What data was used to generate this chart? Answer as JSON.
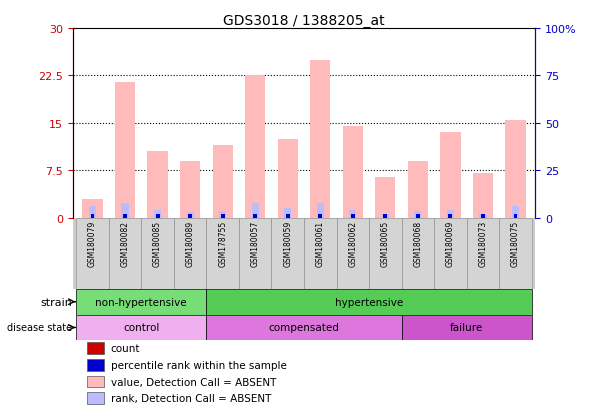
{
  "title": "GDS3018 / 1388205_at",
  "samples": [
    "GSM180079",
    "GSM180082",
    "GSM180085",
    "GSM180089",
    "GSM178755",
    "GSM180057",
    "GSM180059",
    "GSM180061",
    "GSM180062",
    "GSM180065",
    "GSM180068",
    "GSM180069",
    "GSM180073",
    "GSM180075"
  ],
  "value_absent": [
    3.0,
    21.5,
    10.5,
    9.0,
    11.5,
    22.5,
    12.5,
    25.0,
    14.5,
    6.5,
    9.0,
    13.5,
    7.0,
    15.5
  ],
  "rank_absent_pct": [
    6.0,
    8.0,
    4.0,
    3.0,
    3.5,
    8.0,
    5.0,
    8.0,
    4.0,
    2.0,
    3.5,
    4.0,
    2.0,
    6.0
  ],
  "ylim_left": [
    0,
    30
  ],
  "ylim_right": [
    0,
    100
  ],
  "yticks_left": [
    0,
    7.5,
    15,
    22.5,
    30
  ],
  "ytick_labels_left": [
    "0",
    "7.5",
    "15",
    "22.5",
    "30"
  ],
  "yticks_right": [
    0,
    25,
    50,
    75,
    100
  ],
  "ytick_labels_right": [
    "0",
    "25",
    "50",
    "75",
    "100%"
  ],
  "strain_groups": [
    {
      "label": "non-hypertensive",
      "start": 0,
      "end": 4,
      "color": "#77dd77"
    },
    {
      "label": "hypertensive",
      "start": 4,
      "end": 14,
      "color": "#55cc55"
    }
  ],
  "disease_groups": [
    {
      "label": "control",
      "start": 0,
      "end": 4,
      "color": "#f0b0f0"
    },
    {
      "label": "compensated",
      "start": 4,
      "end": 10,
      "color": "#dd77dd"
    },
    {
      "label": "failure",
      "start": 10,
      "end": 14,
      "color": "#cc55cc"
    }
  ],
  "color_value_absent": "#ffbbbb",
  "color_rank_absent": "#bbbbff",
  "color_count": "#cc0000",
  "color_percentile": "#0000cc",
  "bg_color": "#ffffff",
  "left_axis_color": "#cc0000",
  "right_axis_color": "#0000cc",
  "grid_color": "black",
  "grid_yticks": [
    7.5,
    15,
    22.5
  ],
  "legend_items": [
    {
      "color": "#cc0000",
      "label": "count"
    },
    {
      "color": "#0000cc",
      "label": "percentile rank within the sample"
    },
    {
      "color": "#ffbbbb",
      "label": "value, Detection Call = ABSENT"
    },
    {
      "color": "#bbbbff",
      "label": "rank, Detection Call = ABSENT"
    }
  ]
}
